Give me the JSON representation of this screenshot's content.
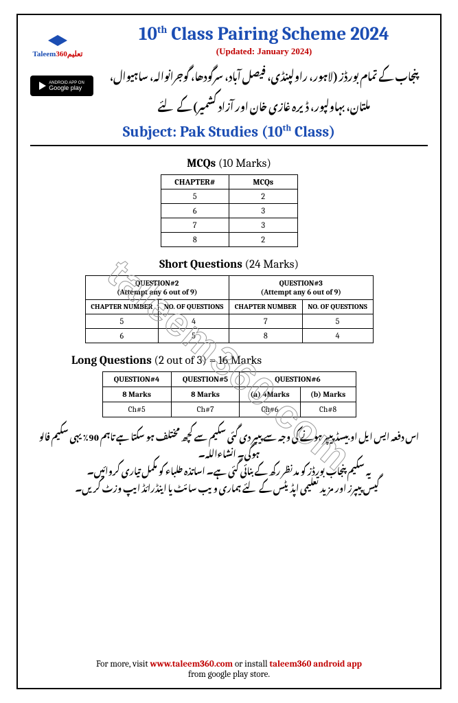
{
  "logo": {
    "brand": "Taleem",
    "brand_suffix": "360",
    "urdu": "تعلیم"
  },
  "gplay": {
    "line1": "ANDROID APP ON",
    "line2": "Google play"
  },
  "header": {
    "title_prefix": "10",
    "title_sup": "th",
    "title_rest": " Class Pairing Scheme 2024",
    "updated": "(Updated: January 2024)",
    "urdu1": "پنجاب کے تمام بورڈز (لاہور، راولپنڈی، فیصل آباد، سرگودھا، گوجرانوالہ، ساہیوال،",
    "urdu2": "ملتان، بہاولپور، ڈیرہ غازی خان اور آزاد کشمیر) کے لئے",
    "subject_label": "Subject: Pak Studies (10",
    "subject_sup": "th",
    "subject_rest": " Class)"
  },
  "mcq": {
    "title_bold": "MCQs",
    "title_paren": " (10 Marks)",
    "headers": [
      "CHAPTER#",
      "MCQs"
    ],
    "rows": [
      [
        "5",
        "2"
      ],
      [
        "6",
        "3"
      ],
      [
        "7",
        "3"
      ],
      [
        "8",
        "2"
      ]
    ]
  },
  "sq": {
    "title_bold": "Short Questions",
    "title_paren": " (24 Marks)",
    "top_headers": [
      {
        "q": "QUESTION#2",
        "attempt": "(Attempt any 6 out of 9)"
      },
      {
        "q": "QUESTION#3",
        "attempt": "(Attempt any 6 out of 9)"
      }
    ],
    "sub_headers": [
      "CHAPTER NUMBER",
      "NO. OF QUESTIONS",
      "CHAPTER NUMBER",
      "NO. OF QUESTIONS"
    ],
    "rows": [
      [
        "5",
        "4",
        "7",
        "5"
      ],
      [
        "6",
        "5",
        "8",
        "4"
      ]
    ]
  },
  "lq": {
    "title_bold": "Long Questions",
    "title_paren": " (2 out of 3) = 16 Marks",
    "headers": [
      "QUESTION#4",
      "QUESTION#5",
      "QUESTION#6"
    ],
    "sub_row": [
      "8 Marks",
      "8 Marks",
      "(a) 4Marks",
      "(b) Marks"
    ],
    "data_row": [
      "Ch#5",
      "Ch#7",
      "Ch#6",
      "Ch#8"
    ]
  },
  "urdu_tail": {
    "l1": "اس دفعہ ایس ایل او بیسڈ پیپر ہونے کی وجہ سے پیپر دی گئی سکیم سے کچھ مختلف ہو سکتا ہے تاہم 90٪ یہی سکیم فالو ہوگی۔ انشاءاللہ۔",
    "l2": "یہ سکیم پنجاب بورڈز کو مدنظر رکھ کے بنائی گئی ہے۔ اساتذہ طلباء کو مکمل تیاری کروائیں۔",
    "l3": "گیس پیپرز اور مزید تعلیمی اپڈیٹس کے لئے ہماری ویب سائٹ یا اینڈرائڈ ایپ وزٹ کریں۔"
  },
  "footer": {
    "pre": "For more, visit ",
    "url": "www.taleem360.com",
    "mid": " or install ",
    "app": "taleem360 android app",
    "post": " from google play store."
  },
  "watermark": "taleem360.com"
}
